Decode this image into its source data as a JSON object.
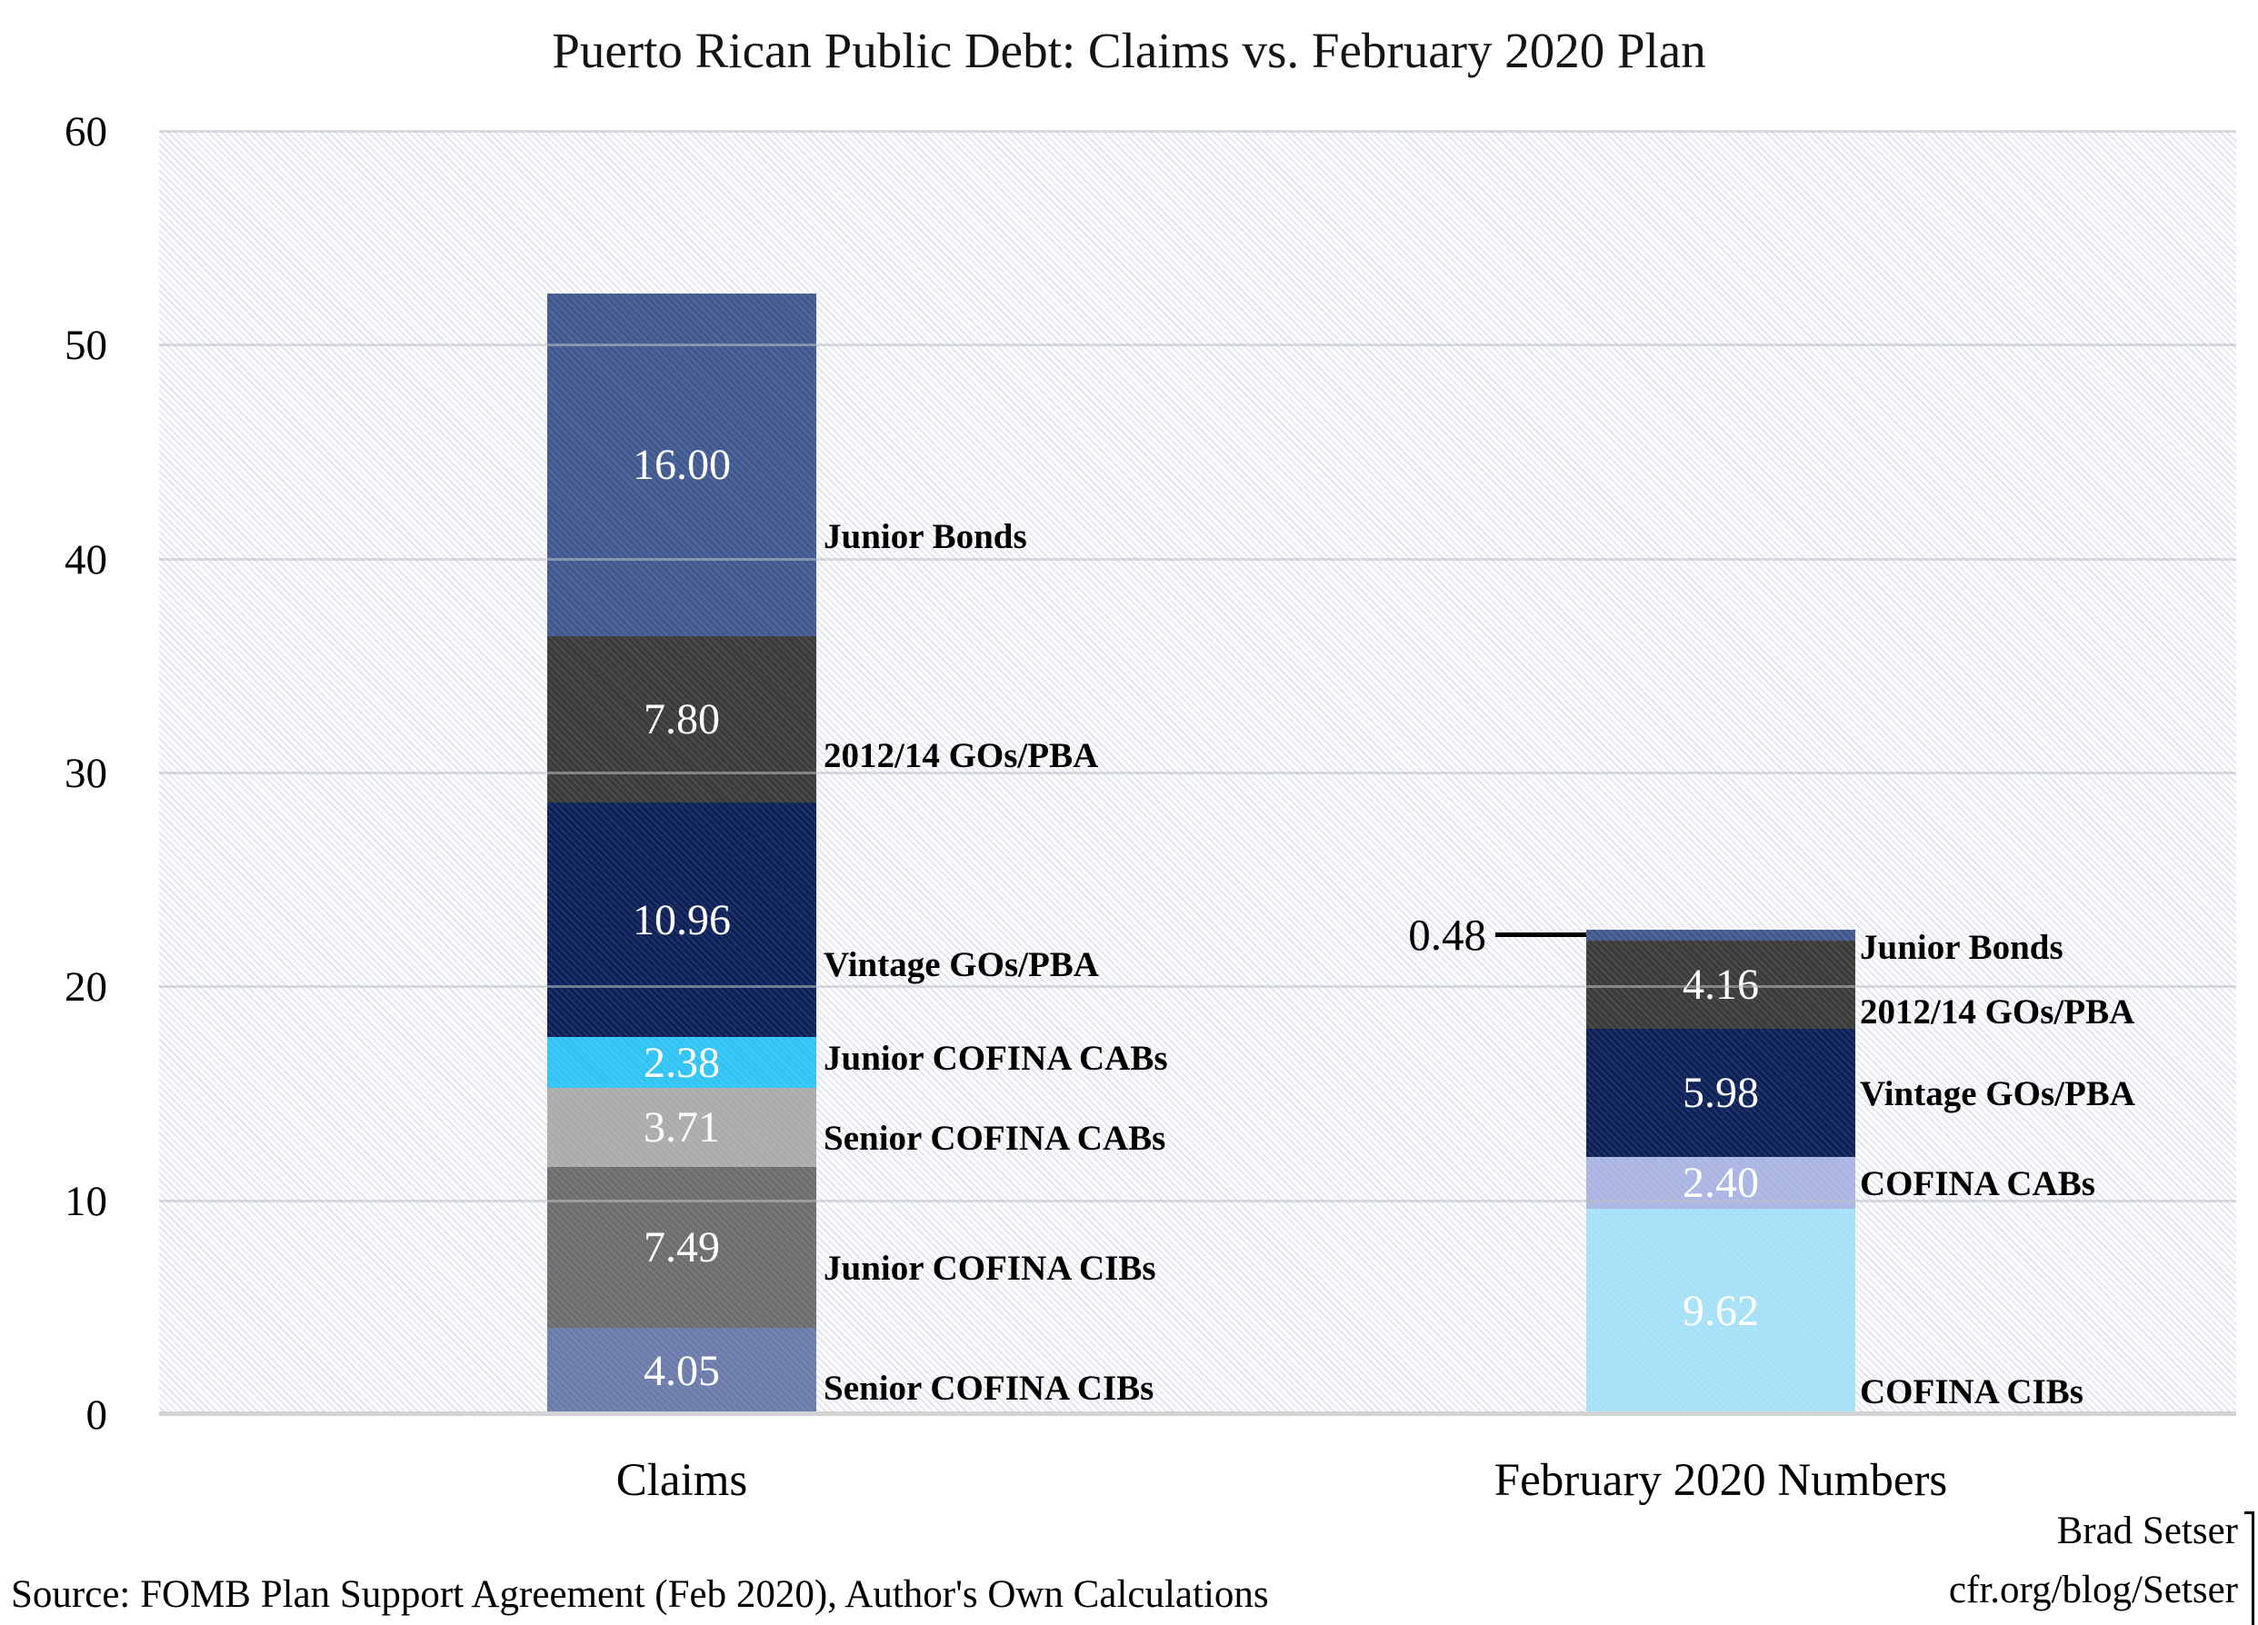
{
  "title": "Puerto Rican Public Debt: Claims vs. February 2020 Plan",
  "colors": {
    "slate_blue": "#41598e",
    "charcoal": "#3b3b39",
    "navy": "#0d2159",
    "bright_cyan": "#31c3f3",
    "silver": "#ababab",
    "mid_gray": "#6d6d6d",
    "light_slate": "#6b7cab",
    "periwinkle": "#aab5e2",
    "light_cyan": "#a6e1f8",
    "gridline": "#d9d9d9"
  },
  "y_axis": {
    "ticks": [
      "60",
      "50",
      "40",
      "30",
      "20",
      "10",
      "0"
    ]
  },
  "chart_data": {
    "type": "bar",
    "stacked": true,
    "title": "Puerto Rican Public Debt: Claims vs. February 2020 Plan",
    "xlabel": "",
    "ylabel": "",
    "ylim": [
      0,
      60
    ],
    "y_ticks": [
      0,
      10,
      20,
      30,
      40,
      50,
      60
    ],
    "grid": true,
    "legend": "none (segments labeled beside bars)",
    "categories": [
      "Claims",
      "February 2020 Numbers"
    ],
    "bars": [
      {
        "category": "Claims",
        "total": 52.39,
        "segments": [
          {
            "label": "Senior COFINA CIBs",
            "value": 4.05,
            "value_label": "4.05",
            "color": "light_slate"
          },
          {
            "label": "Junior COFINA CIBs",
            "value": 7.49,
            "value_label": "7.49",
            "color": "mid_gray"
          },
          {
            "label": "Senior COFINA CABs",
            "value": 3.71,
            "value_label": "3.71",
            "color": "silver"
          },
          {
            "label": "Junior COFINA CABs",
            "value": 2.38,
            "value_label": "2.38",
            "color": "bright_cyan"
          },
          {
            "label": "Vintage GOs/PBA",
            "value": 10.96,
            "value_label": "10.96",
            "color": "navy"
          },
          {
            "label": "2012/14 GOs/PBA",
            "value": 7.8,
            "value_label": "7.80",
            "color": "charcoal"
          },
          {
            "label": "Junior Bonds",
            "value": 16.0,
            "value_label": "16.00",
            "color": "slate_blue"
          }
        ]
      },
      {
        "category": "February 2020 Numbers",
        "total": 22.64,
        "segments": [
          {
            "label": "COFINA CIBs",
            "value": 9.62,
            "value_label": "9.62",
            "color": "light_cyan"
          },
          {
            "label": "COFINA CABs",
            "value": 2.4,
            "value_label": "2.40",
            "color": "periwinkle"
          },
          {
            "label": "Vintage GOs/PBA",
            "value": 5.98,
            "value_label": "5.98",
            "color": "navy"
          },
          {
            "label": "2012/14 GOs/PBA",
            "value": 4.16,
            "value_label": "4.16",
            "color": "charcoal"
          },
          {
            "label": "Junior Bonds",
            "value": 0.48,
            "color": "slate_blue",
            "callout": true
          }
        ]
      }
    ],
    "callout": {
      "label": "0.48",
      "bar": "February 2020 Numbers",
      "segment": "Junior Bonds"
    }
  },
  "footer": {
    "source": "Source: FOMB Plan Support Agreement (Feb 2020), Author's Own Calculations",
    "credit_name": "Brad Setser",
    "credit_url": "cfr.org/blog/Setser"
  }
}
